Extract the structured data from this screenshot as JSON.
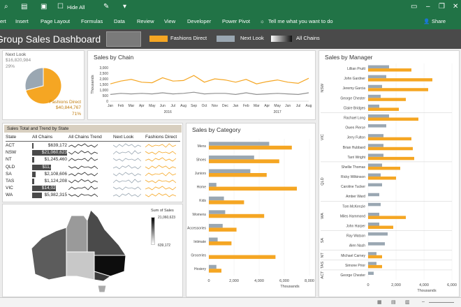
{
  "ribbon": {
    "hide_all_label": "Hide All",
    "tabs": [
      "ert",
      "Insert",
      "Page Layout",
      "Formulas",
      "Data",
      "Review",
      "View",
      "Developer",
      "Power Pivot"
    ],
    "tell_me": "Tell me what you want to do",
    "share_label": "Share",
    "colors": {
      "ribbon": "#217346"
    }
  },
  "dashboard": {
    "title": "Group Sales Dashboard",
    "legend": [
      {
        "label": "Fashions Direct",
        "color": "#f5a623"
      },
      {
        "label": "Next Look",
        "color": "#9aa7b2"
      },
      {
        "label": "All Chains",
        "color": "#333333"
      }
    ]
  },
  "pie": {
    "next_look_label": "Next Look",
    "next_look_value": "$16,820,984",
    "next_look_pct": "29%",
    "fashions_label": "Fashions Direct",
    "fashions_value": "$40,844,767",
    "fashions_pct": "71%",
    "chart_data": {
      "type": "pie",
      "labels": [
        "Next Look",
        "Fashions Direct"
      ],
      "values": [
        29,
        71
      ]
    }
  },
  "chain_chart": {
    "title": "Sales by Chain",
    "ylabel": "Thousands",
    "year1": "2016",
    "year2": "2017",
    "chart_data": {
      "type": "line",
      "categories": [
        "Jan",
        "Feb",
        "Mar",
        "Apr",
        "May",
        "Jun",
        "Jul",
        "Aug",
        "Sep",
        "Oct",
        "Nov",
        "Dec",
        "Jan",
        "Feb",
        "Mar",
        "Apr",
        "May",
        "Jun",
        "Jul",
        "Aug"
      ],
      "yticks": [
        "3,000",
        "2,500",
        "2,000",
        "1,500",
        "1,000",
        "500",
        "0"
      ],
      "ylim": [
        0,
        3000
      ],
      "series": [
        {
          "name": "Fashions Direct",
          "color": "#f5a623",
          "values": [
            1550,
            1800,
            1950,
            1700,
            1650,
            2100,
            1800,
            1850,
            2300,
            1700,
            2000,
            1900,
            1700,
            1950,
            1550,
            1750,
            1900,
            1700,
            1600,
            2050
          ]
        },
        {
          "name": "Next Look",
          "color": "#909090",
          "values": [
            600,
            700,
            650,
            700,
            650,
            750,
            650,
            700,
            800,
            650,
            700,
            700,
            600,
            750,
            600,
            650,
            700,
            650,
            600,
            750
          ]
        }
      ]
    }
  },
  "state_table": {
    "title": "Sales Total and Trend by State",
    "headers": [
      "State",
      "All Chains",
      "All Chains Trend",
      "Next Look",
      "Fashions Direct"
    ],
    "rows": [
      {
        "state": "ACT",
        "value": "$639,172",
        "bar": 0.03
      },
      {
        "state": "NSW",
        "value": "$21,060,623",
        "bar": 1.0
      },
      {
        "state": "NT",
        "value": "$1,245,460",
        "bar": 0.06
      },
      {
        "state": "QLD",
        "value": "$11,424,786",
        "bar": 0.54
      },
      {
        "state": "SA",
        "value": "$2,108,606",
        "bar": 0.1
      },
      {
        "state": "TAS",
        "value": "$1,124,208",
        "bar": 0.05
      },
      {
        "state": "VIC",
        "value": "$14,028,581",
        "bar": 0.67
      },
      {
        "state": "WA",
        "value": "$5,982,315",
        "bar": 0.28
      }
    ]
  },
  "map": {
    "legend_title": "Sum of Sales",
    "legend_max": "21,060,623",
    "legend_min": "639,172"
  },
  "category_chart": {
    "title": "Sales by Category",
    "xlabel": "Thousands",
    "chart_data": {
      "type": "bar",
      "categories": [
        "Mens",
        "Shoes",
        "Juniors",
        "Home",
        "Kids",
        "Womens",
        "Accessories",
        "Intimate",
        "Groceries",
        "Hosiery"
      ],
      "xticks": [
        "0",
        "2,000",
        "4,000",
        "6,000",
        "8,000"
      ],
      "xlim": [
        0,
        8000
      ],
      "series": [
        {
          "name": "Next Look",
          "color": "#9aa7b2",
          "values": [
            4800,
            3600,
            3300,
            600,
            1200,
            1300,
            1100,
            700,
            0,
            600
          ]
        },
        {
          "name": "Fashions Direct",
          "color": "#f5a623",
          "values": [
            6600,
            5600,
            4600,
            7000,
            2800,
            4400,
            2200,
            1800,
            5300,
            1000
          ]
        }
      ]
    }
  },
  "manager_chart": {
    "title": "Sales by Manager",
    "xlabel": "Thousands",
    "chart_data": {
      "type": "bar",
      "groups": [
        {
          "name": "NSW",
          "managers": [
            "Lillian Pruitt",
            "John Gardner",
            "Jeremy Garcia",
            "George Chester",
            "Claire Bridges"
          ]
        },
        {
          "name": "VIC",
          "managers": [
            "Rachael Long",
            "Owen Pierce",
            "Jerry Fulton",
            "Brian Hubbard",
            "Tarri Wright"
          ]
        },
        {
          "name": "QLD",
          "managers": [
            "Shellie Thomas",
            "Ricky Wilkinson",
            "Caroline Tucker",
            "Amber Ward"
          ]
        },
        {
          "name": "WA",
          "managers": [
            "Tom McKenzie",
            "Miles Hammond",
            "John Harper"
          ]
        },
        {
          "name": "SA",
          "managers": [
            "Ray Watson",
            "Alen Nash"
          ]
        },
        {
          "name": "NT",
          "managers": [
            "Michael Carney"
          ]
        },
        {
          "name": "TAS",
          "managers": [
            "Simone Prior"
          ]
        },
        {
          "name": "ACT",
          "managers": [
            "George Chester"
          ]
        }
      ],
      "managers": [
        "Lillian Pruitt",
        "John Gardner",
        "Jeremy Garcia",
        "George Chester",
        "Claire Bridges",
        "Rachael Long",
        "Owen Pierce",
        "Jerry Fulton",
        "Brian Hubbard",
        "Tarri Wright",
        "Shellie Thomas",
        "Ricky Wilkinson",
        "Caroline Tucker",
        "Amber Ward",
        "Tom McKenzie",
        "Miles Hammond",
        "John Harper",
        "Ray Watson",
        "Alen Nash",
        "Michael Carney",
        "Simone Prior",
        "George Chester"
      ],
      "xticks": [
        "0",
        "2,000",
        "4,000",
        "6,000"
      ],
      "xlim": [
        0,
        6000
      ],
      "series": [
        {
          "name": "Next Look",
          "color": "#9aa7b2",
          "values": [
            1500,
            1300,
            1000,
            900,
            800,
            1500,
            1300,
            1100,
            1100,
            1100,
            1000,
            900,
            1000,
            800,
            900,
            800,
            800,
            1400,
            1200,
            600,
            600,
            400
          ]
        },
        {
          "name": "Fashions Direct",
          "color": "#f5a623",
          "values": [
            3100,
            4600,
            4300,
            2700,
            2200,
            3600,
            0,
            3100,
            3200,
            3300,
            2300,
            2000,
            0,
            0,
            0,
            2700,
            1800,
            0,
            0,
            1000,
            1000,
            0
          ]
        }
      ]
    }
  }
}
